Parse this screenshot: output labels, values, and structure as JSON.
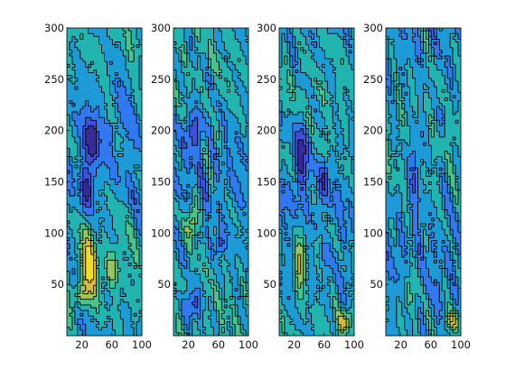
{
  "chart_data": [
    {
      "type": "heatmap",
      "style": "filled-contour",
      "colormap": "parula",
      "x_ticks": [
        "20",
        "60",
        "100"
      ],
      "y_ticks": [
        "50",
        "100",
        "150",
        "200",
        "250",
        "300"
      ],
      "xlim": [
        0,
        100
      ],
      "ylim": [
        0,
        300
      ],
      "features": [
        {
          "kind": "low",
          "x": 32,
          "y": 190,
          "rx": 11,
          "ry": 22,
          "level": 0.1
        },
        {
          "kind": "low",
          "x": 27,
          "y": 145,
          "rx": 9,
          "ry": 22,
          "level": 0.08
        },
        {
          "kind": "low",
          "x": 60,
          "y": 200,
          "rx": 7,
          "ry": 10,
          "level": 0.28
        },
        {
          "kind": "high",
          "x": 30,
          "y": 70,
          "rx": 10,
          "ry": 30,
          "level": 0.9
        },
        {
          "kind": "high",
          "x": 60,
          "y": 65,
          "rx": 9,
          "ry": 16,
          "level": 0.7
        },
        {
          "kind": "high",
          "x": 18,
          "y": 40,
          "rx": 8,
          "ry": 12,
          "level": 0.75
        }
      ]
    },
    {
      "type": "heatmap",
      "style": "filled-contour",
      "colormap": "parula",
      "x_ticks": [
        "20",
        "60",
        "100"
      ],
      "y_ticks": [
        "50",
        "100",
        "150",
        "200",
        "250",
        "300"
      ],
      "xlim": [
        0,
        100
      ],
      "ylim": [
        0,
        300
      ],
      "features": [
        {
          "kind": "low",
          "x": 27,
          "y": 200,
          "rx": 10,
          "ry": 18,
          "level": 0.08
        },
        {
          "kind": "low",
          "x": 62,
          "y": 90,
          "rx": 6,
          "ry": 10,
          "level": 0.15
        },
        {
          "kind": "low",
          "x": 25,
          "y": 30,
          "rx": 11,
          "ry": 14,
          "level": 0.1
        },
        {
          "kind": "high",
          "x": 25,
          "y": 112,
          "rx": 7,
          "ry": 18,
          "level": 0.85
        },
        {
          "kind": "high",
          "x": 55,
          "y": 190,
          "rx": 5,
          "ry": 8,
          "level": 0.55
        }
      ]
    },
    {
      "type": "heatmap",
      "style": "filled-contour",
      "colormap": "parula",
      "x_ticks": [
        "20",
        "60",
        "100"
      ],
      "y_ticks": [
        "50",
        "100",
        "150",
        "200",
        "250",
        "300"
      ],
      "xlim": [
        0,
        100
      ],
      "ylim": [
        0,
        300
      ],
      "features": [
        {
          "kind": "low",
          "x": 30,
          "y": 175,
          "rx": 10,
          "ry": 35,
          "level": 0.08
        },
        {
          "kind": "low",
          "x": 60,
          "y": 150,
          "rx": 7,
          "ry": 20,
          "level": 0.2
        },
        {
          "kind": "high",
          "x": 28,
          "y": 75,
          "rx": 8,
          "ry": 30,
          "level": 0.82
        },
        {
          "kind": "high",
          "x": 55,
          "y": 95,
          "rx": 6,
          "ry": 10,
          "level": 0.65
        },
        {
          "kind": "high",
          "x": 88,
          "y": 15,
          "rx": 9,
          "ry": 10,
          "level": 0.8
        }
      ]
    },
    {
      "type": "heatmap",
      "style": "filled-contour",
      "colormap": "parula",
      "x_ticks": [
        "20",
        "60",
        "100"
      ],
      "y_ticks": [
        "50",
        "100",
        "150",
        "200",
        "250",
        "300"
      ],
      "xlim": [
        0,
        100
      ],
      "ylim": [
        0,
        300
      ],
      "features": [
        {
          "kind": "low",
          "x": 40,
          "y": 170,
          "rx": 9,
          "ry": 40,
          "level": 0.2
        },
        {
          "kind": "low",
          "x": 75,
          "y": 215,
          "rx": 6,
          "ry": 15,
          "level": 0.28
        },
        {
          "kind": "high",
          "x": 30,
          "y": 40,
          "rx": 8,
          "ry": 20,
          "level": 0.68
        },
        {
          "kind": "high",
          "x": 88,
          "y": 15,
          "rx": 9,
          "ry": 10,
          "level": 0.85
        }
      ]
    }
  ]
}
